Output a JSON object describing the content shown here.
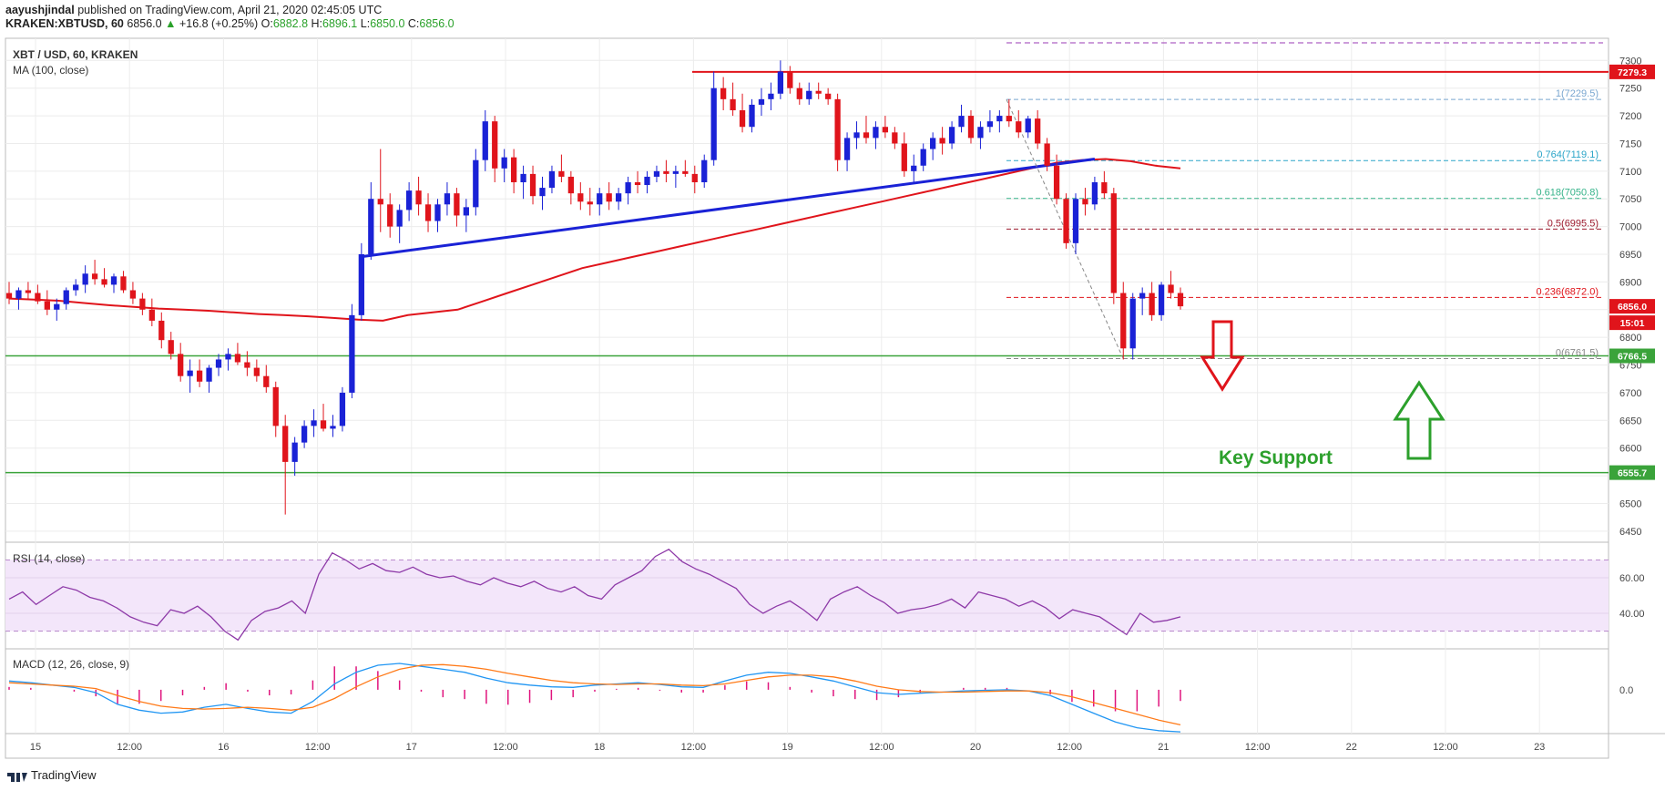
{
  "publisher_line": {
    "author": "aayushjindal",
    "text": "published on TradingView.com, April 21, 2020 02:45:05 UTC"
  },
  "ohlc_line": {
    "symbol": "KRAKEN:XBTUSD, 60",
    "last": "6856.0",
    "change": "+16.8 (+0.25%)",
    "o_label": "O:",
    "o": "6882.8",
    "h_label": "H:",
    "h": "6896.1",
    "l_label": "L:",
    "l": "6850.0",
    "c_label": "C:",
    "c": "6856.0"
  },
  "colors": {
    "up": "#1a22d6",
    "down": "#e0141b",
    "ma": "#e0141b",
    "trendline": "#1a22d6",
    "support": "#3aa33a",
    "rsi": "#8e3aa8",
    "macd": "#2196f3",
    "signal": "#ff7a18",
    "hist": "#e0147d",
    "resistance": "#e0141b",
    "arrow_down": "#e0141b",
    "arrow_up": "#2ca02c"
  },
  "chart_data": {
    "type": "candlestick",
    "title": "XBT / USD, 60, KRAKEN",
    "ma_label": "MA (100, close)",
    "ylim": [
      6430,
      7340
    ],
    "y_ticks": [
      6450,
      6500,
      6550,
      6600,
      6650,
      6700,
      6750,
      6800,
      6850,
      6900,
      6950,
      7000,
      7050,
      7100,
      7150,
      7200,
      7250,
      7300
    ],
    "x_ticks": [
      "15",
      "12:00",
      "16",
      "12:00",
      "17",
      "12:00",
      "18",
      "12:00",
      "19",
      "12:00",
      "20",
      "12:00",
      "21",
      "12:00",
      "22",
      "12:00",
      "23"
    ],
    "x_range_hours": [
      0,
      8.8
    ],
    "candles": [
      [
        6880,
        6900,
        6860,
        6870
      ],
      [
        6870,
        6890,
        6850,
        6885
      ],
      [
        6885,
        6900,
        6870,
        6880
      ],
      [
        6880,
        6895,
        6860,
        6865
      ],
      [
        6865,
        6885,
        6840,
        6850
      ],
      [
        6850,
        6870,
        6830,
        6860
      ],
      [
        6860,
        6890,
        6850,
        6885
      ],
      [
        6885,
        6905,
        6875,
        6895
      ],
      [
        6895,
        6930,
        6880,
        6915
      ],
      [
        6915,
        6940,
        6895,
        6905
      ],
      [
        6905,
        6925,
        6890,
        6895
      ],
      [
        6895,
        6915,
        6880,
        6910
      ],
      [
        6910,
        6920,
        6880,
        6885
      ],
      [
        6885,
        6900,
        6860,
        6870
      ],
      [
        6870,
        6880,
        6840,
        6850
      ],
      [
        6850,
        6870,
        6820,
        6830
      ],
      [
        6830,
        6845,
        6780,
        6795
      ],
      [
        6795,
        6810,
        6760,
        6770
      ],
      [
        6770,
        6790,
        6720,
        6730
      ],
      [
        6730,
        6760,
        6700,
        6740
      ],
      [
        6740,
        6760,
        6710,
        6720
      ],
      [
        6720,
        6750,
        6700,
        6745
      ],
      [
        6745,
        6770,
        6730,
        6760
      ],
      [
        6760,
        6780,
        6740,
        6770
      ],
      [
        6770,
        6790,
        6750,
        6755
      ],
      [
        6755,
        6775,
        6730,
        6745
      ],
      [
        6745,
        6760,
        6720,
        6730
      ],
      [
        6730,
        6750,
        6700,
        6710
      ],
      [
        6710,
        6720,
        6620,
        6640
      ],
      [
        6640,
        6660,
        6480,
        6575
      ],
      [
        6575,
        6620,
        6550,
        6610
      ],
      [
        6610,
        6650,
        6600,
        6640
      ],
      [
        6640,
        6670,
        6620,
        6650
      ],
      [
        6650,
        6680,
        6630,
        6635
      ],
      [
        6635,
        6660,
        6620,
        6640
      ],
      [
        6640,
        6710,
        6630,
        6700
      ],
      [
        6700,
        6860,
        6690,
        6840
      ],
      [
        6840,
        6970,
        6830,
        6950
      ],
      [
        6950,
        7080,
        6940,
        7050
      ],
      [
        7050,
        7140,
        6990,
        7040
      ],
      [
        7040,
        7060,
        6980,
        7000
      ],
      [
        7000,
        7040,
        6970,
        7030
      ],
      [
        7030,
        7080,
        7010,
        7065
      ],
      [
        7065,
        7090,
        7020,
        7040
      ],
      [
        7040,
        7060,
        6990,
        7010
      ],
      [
        7010,
        7050,
        6990,
        7040
      ],
      [
        7040,
        7080,
        7020,
        7060
      ],
      [
        7060,
        7070,
        7000,
        7020
      ],
      [
        7020,
        7050,
        6990,
        7035
      ],
      [
        7035,
        7140,
        7020,
        7120
      ],
      [
        7120,
        7210,
        7100,
        7190
      ],
      [
        7190,
        7200,
        7080,
        7105
      ],
      [
        7105,
        7140,
        7080,
        7125
      ],
      [
        7125,
        7140,
        7060,
        7080
      ],
      [
        7080,
        7110,
        7050,
        7095
      ],
      [
        7095,
        7110,
        7040,
        7055
      ],
      [
        7055,
        7090,
        7030,
        7070
      ],
      [
        7070,
        7110,
        7060,
        7100
      ],
      [
        7100,
        7130,
        7080,
        7090
      ],
      [
        7090,
        7100,
        7040,
        7060
      ],
      [
        7060,
        7080,
        7030,
        7045
      ],
      [
        7045,
        7070,
        7020,
        7040
      ],
      [
        7040,
        7070,
        7020,
        7060
      ],
      [
        7060,
        7080,
        7030,
        7045
      ],
      [
        7045,
        7070,
        7030,
        7060
      ],
      [
        7060,
        7090,
        7040,
        7080
      ],
      [
        7080,
        7100,
        7060,
        7075
      ],
      [
        7075,
        7100,
        7060,
        7090
      ],
      [
        7090,
        7110,
        7080,
        7100
      ],
      [
        7100,
        7120,
        7080,
        7095
      ],
      [
        7095,
        7110,
        7070,
        7100
      ],
      [
        7100,
        7120,
        7090,
        7095
      ],
      [
        7095,
        7110,
        7060,
        7080
      ],
      [
        7080,
        7130,
        7070,
        7120
      ],
      [
        7120,
        7280,
        7110,
        7250
      ],
      [
        7250,
        7270,
        7210,
        7230
      ],
      [
        7230,
        7260,
        7200,
        7210
      ],
      [
        7210,
        7240,
        7170,
        7180
      ],
      [
        7180,
        7230,
        7170,
        7220
      ],
      [
        7220,
        7250,
        7200,
        7230
      ],
      [
        7230,
        7260,
        7210,
        7240
      ],
      [
        7240,
        7300,
        7230,
        7280
      ],
      [
        7280,
        7290,
        7240,
        7250
      ],
      [
        7250,
        7260,
        7220,
        7230
      ],
      [
        7230,
        7260,
        7220,
        7245
      ],
      [
        7245,
        7260,
        7230,
        7240
      ],
      [
        7240,
        7250,
        7220,
        7230
      ],
      [
        7230,
        7240,
        7100,
        7120
      ],
      [
        7120,
        7170,
        7100,
        7160
      ],
      [
        7160,
        7190,
        7140,
        7170
      ],
      [
        7170,
        7200,
        7150,
        7160
      ],
      [
        7160,
        7190,
        7140,
        7180
      ],
      [
        7180,
        7200,
        7160,
        7170
      ],
      [
        7170,
        7180,
        7140,
        7150
      ],
      [
        7150,
        7170,
        7090,
        7100
      ],
      [
        7100,
        7130,
        7080,
        7110
      ],
      [
        7110,
        7150,
        7100,
        7140
      ],
      [
        7140,
        7170,
        7120,
        7160
      ],
      [
        7160,
        7180,
        7130,
        7150
      ],
      [
        7150,
        7190,
        7140,
        7180
      ],
      [
        7180,
        7220,
        7170,
        7200
      ],
      [
        7200,
        7210,
        7150,
        7160
      ],
      [
        7160,
        7190,
        7140,
        7180
      ],
      [
        7180,
        7210,
        7170,
        7190
      ],
      [
        7190,
        7210,
        7170,
        7200
      ],
      [
        7200,
        7230,
        7180,
        7190
      ],
      [
        7190,
        7210,
        7160,
        7170
      ],
      [
        7170,
        7200,
        7160,
        7195
      ],
      [
        7195,
        7210,
        7140,
        7150
      ],
      [
        7150,
        7160,
        7100,
        7110
      ],
      [
        7110,
        7130,
        7040,
        7050
      ],
      [
        7050,
        7060,
        6960,
        6970
      ],
      [
        6970,
        7060,
        6950,
        7050
      ],
      [
        7050,
        7070,
        7020,
        7040
      ],
      [
        7040,
        7090,
        7030,
        7080
      ],
      [
        7080,
        7100,
        7050,
        7060
      ],
      [
        7060,
        7070,
        6860,
        6880
      ],
      [
        6880,
        6900,
        6760,
        6780
      ],
      [
        6780,
        6880,
        6760,
        6870
      ],
      [
        6870,
        6890,
        6840,
        6880
      ],
      [
        6880,
        6900,
        6830,
        6840
      ],
      [
        6840,
        6900,
        6830,
        6895
      ],
      [
        6895,
        6920,
        6870,
        6880
      ],
      [
        6880,
        6890,
        6850,
        6856
      ]
    ],
    "ma100": [
      6870,
      6868,
      6866,
      6862,
      6858,
      6855,
      6852,
      6850,
      6848,
      6845,
      6842,
      6840,
      6838,
      6835,
      6832,
      6830,
      6840,
      6845,
      6850,
      6865,
      6880,
      6895,
      6910,
      6925,
      6935,
      6945,
      6955,
      6965,
      6975,
      6985,
      6995,
      7005,
      7015,
      7025,
      7035,
      7045,
      7055,
      7065,
      7075,
      7085,
      7095,
      7105,
      7115,
      7120,
      7122,
      7118,
      7110,
      7105
    ],
    "horizontal_levels": [
      {
        "name": "Resistance",
        "value": 7279.3
      },
      {
        "name": "Support 1",
        "value": 6766.5
      },
      {
        "name": "Support 2",
        "value": 6555.7
      }
    ],
    "fib_levels": [
      {
        "ratio": "1",
        "value": 7229.5,
        "label": "1(7229.5)"
      },
      {
        "ratio": "0.764",
        "value": 7119.1,
        "label": "0.764(7119.1)"
      },
      {
        "ratio": "0.618",
        "value": 7050.8,
        "label": "0.618(7050.8)"
      },
      {
        "ratio": "0.5",
        "value": 6995.5,
        "label": "0.5(6995.5)"
      },
      {
        "ratio": "0.236",
        "value": 6872.0,
        "label": "0.236(6872.0)"
      },
      {
        "ratio": "0",
        "value": 6761.5,
        "label": "0(6761.5)"
      }
    ],
    "price_tags": [
      {
        "value": "7279.3"
      },
      {
        "value": "6856.0"
      },
      {
        "value": "15:01"
      },
      {
        "value": "6766.5"
      },
      {
        "value": "6555.7"
      }
    ],
    "annotation": "Key Support",
    "rsi": {
      "label": "RSI (14, close)",
      "ylim": [
        20,
        80
      ],
      "ticks": [
        40.0,
        60.0
      ],
      "tick_labels": [
        "40.00",
        "60.00"
      ],
      "band": [
        30,
        70
      ],
      "values": [
        48,
        52,
        45,
        50,
        55,
        53,
        49,
        47,
        43,
        38,
        35,
        33,
        42,
        40,
        44,
        38,
        30,
        25,
        36,
        41,
        43,
        47,
        40,
        62,
        74,
        70,
        65,
        68,
        64,
        63,
        66,
        62,
        60,
        61,
        58,
        56,
        60,
        57,
        55,
        58,
        54,
        52,
        55,
        50,
        48,
        56,
        60,
        64,
        72,
        76,
        69,
        65,
        62,
        58,
        54,
        45,
        40,
        44,
        47,
        42,
        36,
        48,
        52,
        55,
        50,
        46,
        40,
        42,
        43,
        45,
        48,
        43,
        52,
        50,
        48,
        44,
        47,
        43,
        37,
        42,
        40,
        38,
        33,
        28,
        40,
        35,
        36,
        38
      ]
    },
    "macd": {
      "label": "MACD (12, 26, close, 9)",
      "ylim": [
        -75,
        70
      ],
      "ticks": [
        0.0
      ],
      "tick_labels": [
        "0.0"
      ],
      "macd_values": [
        15,
        12,
        8,
        4,
        -5,
        -25,
        -35,
        -40,
        -38,
        -30,
        -25,
        -32,
        -38,
        -40,
        -20,
        10,
        30,
        42,
        45,
        40,
        35,
        30,
        20,
        12,
        8,
        5,
        4,
        8,
        10,
        12,
        9,
        5,
        4,
        15,
        25,
        30,
        28,
        22,
        15,
        5,
        -5,
        -8,
        -6,
        -4,
        -2,
        -1,
        0,
        -2,
        -10,
        -25,
        -40,
        -55,
        -65,
        -70,
        -72
      ],
      "signal_values": [
        12,
        10,
        8,
        6,
        2,
        -10,
        -20,
        -28,
        -32,
        -33,
        -32,
        -30,
        -32,
        -35,
        -30,
        -15,
        5,
        22,
        35,
        42,
        43,
        40,
        35,
        28,
        22,
        16,
        12,
        10,
        9,
        10,
        10,
        8,
        7,
        10,
        16,
        22,
        25,
        25,
        22,
        15,
        6,
        0,
        -3,
        -4,
        -4,
        -3,
        -2,
        -2,
        -5,
        -12,
        -22,
        -32,
        -42,
        -52,
        -60
      ]
    },
    "date_axis_labels": [
      "15",
      "12:00",
      "16",
      "12:00",
      "17",
      "12:00",
      "18",
      "12:00",
      "19",
      "12:00",
      "20",
      "12:00",
      "21",
      "12:00",
      "22",
      "12:00",
      "23"
    ]
  },
  "footer": {
    "brand": "TradingView"
  }
}
